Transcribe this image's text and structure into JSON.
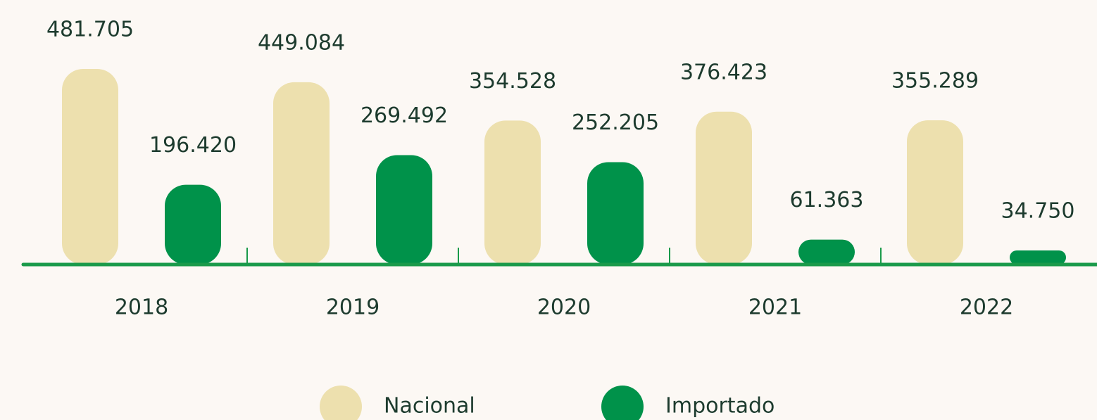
{
  "chart_data": {
    "type": "bar",
    "categories": [
      "2018",
      "2019",
      "2020",
      "2021",
      "2022"
    ],
    "series": [
      {
        "name": "Nacional",
        "color": "#ede0ae",
        "values": [
          481705,
          449084,
          354528,
          376423,
          355289
        ],
        "value_labels": [
          "481.705",
          "449.084",
          "354.528",
          "376.423",
          "355.289"
        ]
      },
      {
        "name": "Importado",
        "color": "#00924a",
        "values": [
          196420,
          269492,
          252205,
          61363,
          34750
        ],
        "value_labels": [
          "196.420",
          "269.492",
          "252.205",
          "61.363",
          "34.750"
        ]
      }
    ]
  }
}
